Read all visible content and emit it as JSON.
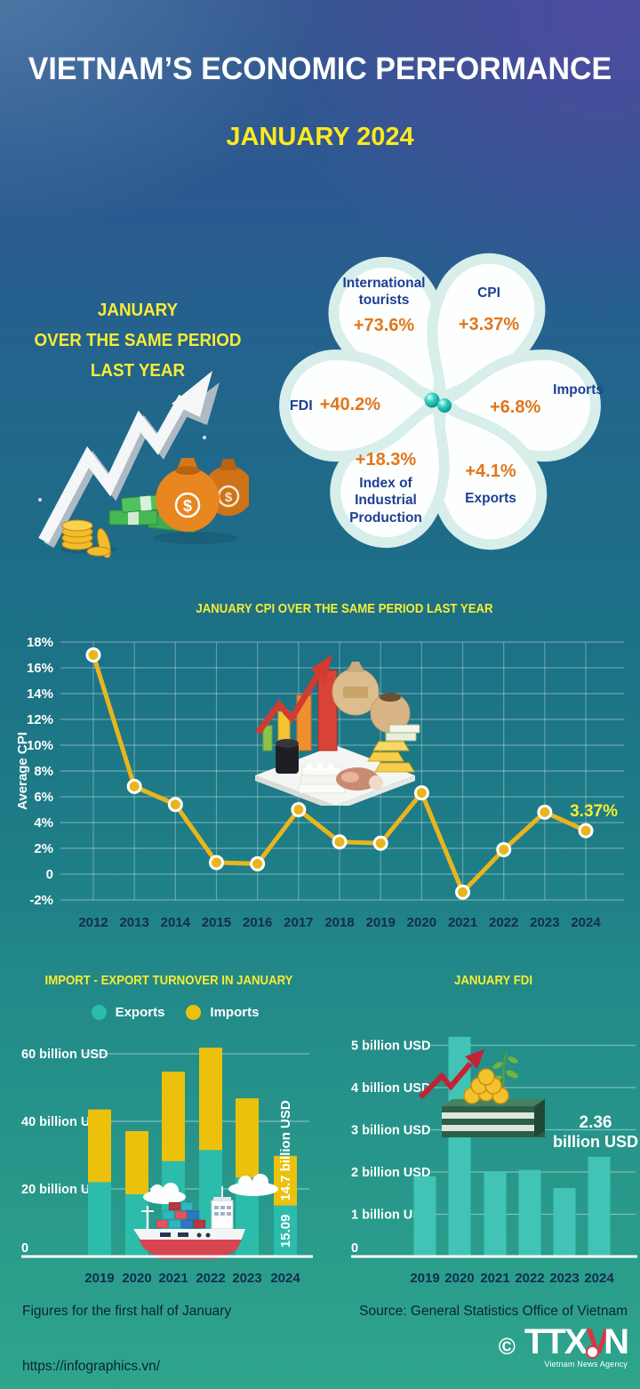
{
  "header": {
    "title": "VIETNAM’S ECONOMIC PERFORMANCE",
    "subtitle": "JANUARY 2024"
  },
  "intro": {
    "heading_lines": [
      "JANUARY",
      "OVER THE SAME PERIOD",
      "LAST YEAR"
    ]
  },
  "flower": {
    "petals": [
      {
        "id": "international-tourists",
        "label": "International tourists",
        "value": "+73.6%"
      },
      {
        "id": "cpi",
        "label": "CPI",
        "value": "+3.37%"
      },
      {
        "id": "imports",
        "label": "Imports",
        "value": "+6.8%"
      },
      {
        "id": "exports",
        "label": "Exports",
        "value": "+4.1%"
      },
      {
        "id": "industrial-production",
        "label": "Index of Industrial Production",
        "value": "+18.3%"
      },
      {
        "id": "fdi",
        "label": "FDI",
        "value": "+40.2%"
      }
    ]
  },
  "chart_data": [
    {
      "type": "line",
      "title": "JANUARY CPI OVER THE SAME PERIOD LAST YEAR",
      "ylabel": "Average CPI",
      "x": [
        2012,
        2013,
        2014,
        2015,
        2016,
        2017,
        2018,
        2019,
        2020,
        2021,
        2022,
        2023,
        2024
      ],
      "values": [
        17.0,
        6.8,
        5.4,
        0.9,
        0.8,
        5.0,
        2.5,
        2.4,
        6.3,
        -1.4,
        1.9,
        4.8,
        3.37
      ],
      "yticks": [
        {
          "v": 18,
          "label": "18%"
        },
        {
          "v": 16,
          "label": "16%"
        },
        {
          "v": 14,
          "label": "14%"
        },
        {
          "v": 12,
          "label": "12%"
        },
        {
          "v": 10,
          "label": "10%"
        },
        {
          "v": 8,
          "label": "8%"
        },
        {
          "v": 6,
          "label": "6%"
        },
        {
          "v": 4,
          "label": "4%"
        },
        {
          "v": 2,
          "label": "2%"
        },
        {
          "v": 0,
          "label": "0"
        },
        {
          "v": -2,
          "label": "-2%"
        }
      ],
      "ylim": [
        -2,
        18
      ],
      "grid": true,
      "line_color": "#e9b51d",
      "annotation": {
        "label": "3.37%",
        "color": "#f6ec35"
      }
    },
    {
      "type": "bar-stacked",
      "title": "IMPORT - EXPORT TURNOVER IN JANUARY",
      "categories": [
        "2019",
        "2020",
        "2021",
        "2022",
        "2023",
        "2024"
      ],
      "series": [
        {
          "name": "Exports",
          "color": "#2bbcab",
          "values": [
            22.0,
            18.4,
            28.2,
            31.5,
            23.4,
            15.09
          ]
        },
        {
          "name": "Imports",
          "color": "#ecc10c",
          "values": [
            21.5,
            18.7,
            26.5,
            30.3,
            23.4,
            14.7
          ]
        }
      ],
      "yticks": [
        {
          "v": 60,
          "label": "60 billion USD"
        },
        {
          "v": 40,
          "label": "40 billion USD"
        },
        {
          "v": 20,
          "label": "20 billion USD"
        },
        {
          "v": 0,
          "label": "0"
        }
      ],
      "ylim": [
        0,
        65
      ],
      "legend_position": "top",
      "value_labels_2024": {
        "exports": "15.09",
        "imports": "14.7 billion USD"
      }
    },
    {
      "type": "bar",
      "title": "JANUARY FDI",
      "categories": [
        "2019",
        "2020",
        "2021",
        "2022",
        "2023",
        "2024"
      ],
      "values": [
        1.9,
        5.2,
        2.0,
        2.05,
        1.62,
        2.36
      ],
      "color": "#41c4b5",
      "yticks": [
        {
          "v": 5,
          "label": "5 billion USD"
        },
        {
          "v": 4,
          "label": "4 billion USD"
        },
        {
          "v": 3,
          "label": "3 billion USD"
        },
        {
          "v": 2,
          "label": "2 billion USD"
        },
        {
          "v": 1,
          "label": "1 billion USD"
        },
        {
          "v": 0,
          "label": "0"
        }
      ],
      "ylim": [
        0,
        5.5
      ],
      "annotation": {
        "lines": [
          "2.36",
          "billion USD"
        ],
        "color": "#ffffff"
      }
    }
  ],
  "footer": {
    "note": "Figures for the first half of January",
    "source": "Source: General Statistics Office of Vietnam",
    "url": "https://infographics.vn/",
    "agency": {
      "copyright": "©",
      "name_parts": [
        "TTX",
        "V",
        "N"
      ],
      "tagline": "Vietnam News Agency"
    }
  },
  "colors": {
    "title_yellow": "#f8ed34",
    "label_navy": "#1d3f93",
    "value_orange": "#e0761c",
    "axis_text": "#132c52"
  }
}
